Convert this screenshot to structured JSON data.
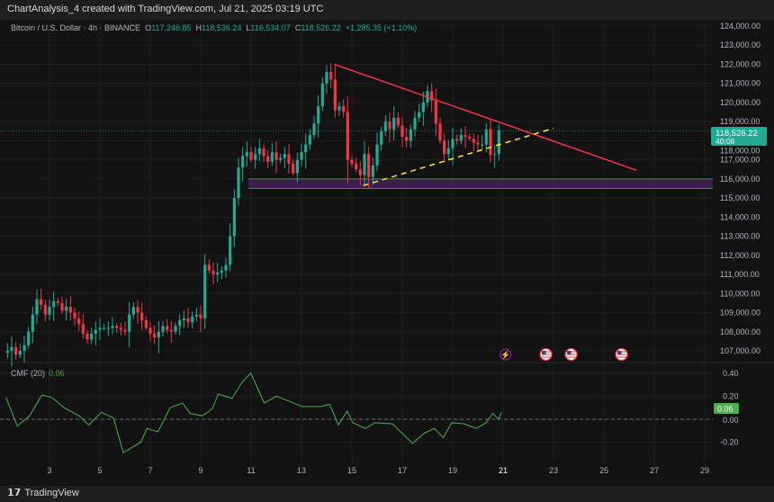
{
  "header": {
    "title": "ChartAnalysis_4 created with TradingView.com, Jul 21, 2025 03:19 UTC"
  },
  "legend": {
    "symbol": "Bitcoin / U.S. Dollar · 4h · BINANCE",
    "o_label": "O",
    "o": "117,246.85",
    "h_label": "H",
    "h": "118,536.24",
    "l_label": "L",
    "l": "116,534.07",
    "c_label": "C",
    "c": "118,526.22",
    "change": "+1,285.35 (+1.10%)"
  },
  "price_tag": {
    "price": "118,526.22",
    "countdown": "40:08"
  },
  "cmf": {
    "label": "CMF (20)",
    "value": "0.06",
    "tag": "0.06"
  },
  "footer": {
    "logo": "TradingView"
  },
  "colors": {
    "up": "#22ab94",
    "down": "#f23645",
    "resistance": "#f23645",
    "support": "#ffeb3b",
    "zone": "#3b1e4a",
    "cmf_line": "#4caf50",
    "price_tag": "#22ab94"
  },
  "event_icons": [
    {
      "icon": "lightning-icon",
      "day": 21.1
    },
    {
      "icon": "us-flag-icon",
      "day": 22.7
    },
    {
      "icon": "us-flag-icon",
      "day": 23.7
    },
    {
      "icon": "us-flag-icon",
      "day": 25.7
    }
  ],
  "chart_data": [
    {
      "type": "candlestick",
      "timeframe": "4h",
      "x_unit": "day of July 2025",
      "y_ticks": [
        "107,000.00",
        "108,000.00",
        "109,000.00",
        "110,000.00",
        "111,000.00",
        "112,000.00",
        "113,000.00",
        "114,000.00",
        "115,000.00",
        "116,000.00",
        "117,000.00",
        "118,000.00",
        "119,000.00",
        "120,000.00",
        "121,000.00",
        "122,000.00",
        "123,000.00",
        "124,000.00"
      ],
      "x_ticks": [
        "3",
        "5",
        "7",
        "9",
        "11",
        "13",
        "15",
        "17",
        "19",
        "21",
        "23",
        "25",
        "27",
        "29"
      ],
      "ylim": [
        106400,
        124600
      ],
      "daily_closes": [
        {
          "day": 1,
          "closes": [
            107300,
            106900,
            107000,
            107200,
            106800,
            107000
          ]
        },
        {
          "day": 2,
          "closes": [
            107300,
            108000,
            108900,
            109700,
            109400,
            108900
          ]
        },
        {
          "day": 3,
          "closes": [
            109300,
            109600,
            109500,
            109100,
            109300,
            109000
          ]
        },
        {
          "day": 4,
          "closes": [
            108700,
            108400,
            107900,
            107600,
            107900,
            108100
          ]
        },
        {
          "day": 5,
          "closes": [
            108200,
            108200,
            108200,
            108300,
            108200,
            108100
          ]
        },
        {
          "day": 6,
          "closes": [
            108000,
            108900,
            109300,
            109000,
            108600,
            108200
          ]
        },
        {
          "day": 7,
          "closes": [
            107900,
            107700,
            108000,
            108300,
            108100,
            108000
          ]
        },
        {
          "day": 8,
          "closes": [
            108300,
            108600,
            108700,
            108500,
            108800,
            108900
          ]
        },
        {
          "day": 9,
          "closes": [
            108700,
            111500,
            111200,
            111000,
            111100,
            111200
          ]
        },
        {
          "day": 10,
          "closes": [
            111500,
            113000,
            115000,
            116600,
            117200,
            117400
          ]
        },
        {
          "day": 11,
          "closes": [
            117000,
            117300,
            117600,
            117200,
            116900,
            117400
          ]
        },
        {
          "day": 12,
          "closes": [
            117000,
            117100,
            117300,
            116800,
            116300,
            117000
          ]
        },
        {
          "day": 13,
          "closes": [
            117400,
            117800,
            118300,
            118900,
            119800,
            121000
          ]
        },
        {
          "day": 14,
          "closes": [
            121600,
            121200,
            119600,
            119800,
            119500,
            117000
          ]
        },
        {
          "day": 15,
          "closes": [
            116800,
            116500,
            116200,
            117300,
            116100,
            116700
          ]
        },
        {
          "day": 16,
          "closes": [
            117800,
            118500,
            119000,
            118600,
            119200,
            118800
          ]
        },
        {
          "day": 17,
          "closes": [
            118200,
            118000,
            118600,
            119200,
            119500,
            120000
          ]
        },
        {
          "day": 18,
          "closes": [
            120600,
            120100,
            118900,
            118000,
            117300,
            117600
          ]
        },
        {
          "day": 19,
          "closes": [
            118100,
            118000,
            118300,
            118200,
            118100,
            117900
          ]
        },
        {
          "day": 20,
          "closes": [
            117800,
            117800,
            118600,
            117247,
            117300,
            118526.22
          ]
        }
      ],
      "trendlines": [
        {
          "name": "descending resistance",
          "style": "solid",
          "from": [
            14.3,
            122000
          ],
          "to": [
            26.3,
            116450
          ]
        },
        {
          "name": "ascending support",
          "style": "dashed",
          "from": [
            15.45,
            115650
          ],
          "to": [
            23.0,
            118650
          ]
        }
      ],
      "zone": {
        "from_day": 10.9,
        "to_day": 30.1,
        "low": 115500,
        "high": 116000
      },
      "last_price": 118526.22
    },
    {
      "type": "line",
      "title": "CMF (20)",
      "y_ticks": [
        "0.40",
        "0.20",
        "0.00",
        "-0.20"
      ],
      "ylim": [
        -0.33,
        0.47
      ],
      "points": [
        [
          1.27,
          0.19
        ],
        [
          1.72,
          -0.06
        ],
        [
          2.21,
          0.03
        ],
        [
          2.7,
          0.21
        ],
        [
          3.09,
          0.19
        ],
        [
          3.58,
          0.1
        ],
        [
          4.17,
          0.03
        ],
        [
          4.56,
          -0.05
        ],
        [
          5.05,
          0.06
        ],
        [
          5.54,
          0.01
        ],
        [
          5.93,
          -0.29
        ],
        [
          6.62,
          -0.2
        ],
        [
          6.87,
          -0.08
        ],
        [
          7.3,
          -0.11
        ],
        [
          7.79,
          0.1
        ],
        [
          8.28,
          0.14
        ],
        [
          8.58,
          0.05
        ],
        [
          9.07,
          0.03
        ],
        [
          9.46,
          0.09
        ],
        [
          9.7,
          0.22
        ],
        [
          10.24,
          0.18
        ],
        [
          10.64,
          0.32
        ],
        [
          10.99,
          0.4
        ],
        [
          11.52,
          0.14
        ],
        [
          12.01,
          0.2
        ],
        [
          12.59,
          0.15
        ],
        [
          13.03,
          0.11
        ],
        [
          13.77,
          0.11
        ],
        [
          14.12,
          0.13
        ],
        [
          14.46,
          -0.05
        ],
        [
          14.81,
          0.07
        ],
        [
          15.04,
          -0.03
        ],
        [
          15.53,
          -0.08
        ],
        [
          15.92,
          -0.03
        ],
        [
          16.61,
          -0.04
        ],
        [
          17.41,
          -0.21
        ],
        [
          17.88,
          -0.12
        ],
        [
          18.27,
          -0.08
        ],
        [
          18.63,
          -0.16
        ],
        [
          18.96,
          -0.03
        ],
        [
          19.45,
          -0.04
        ],
        [
          19.94,
          -0.08
        ],
        [
          20.33,
          -0.03
        ],
        [
          20.59,
          0.05
        ],
        [
          20.82,
          0.0
        ],
        [
          20.94,
          0.06
        ]
      ]
    }
  ]
}
